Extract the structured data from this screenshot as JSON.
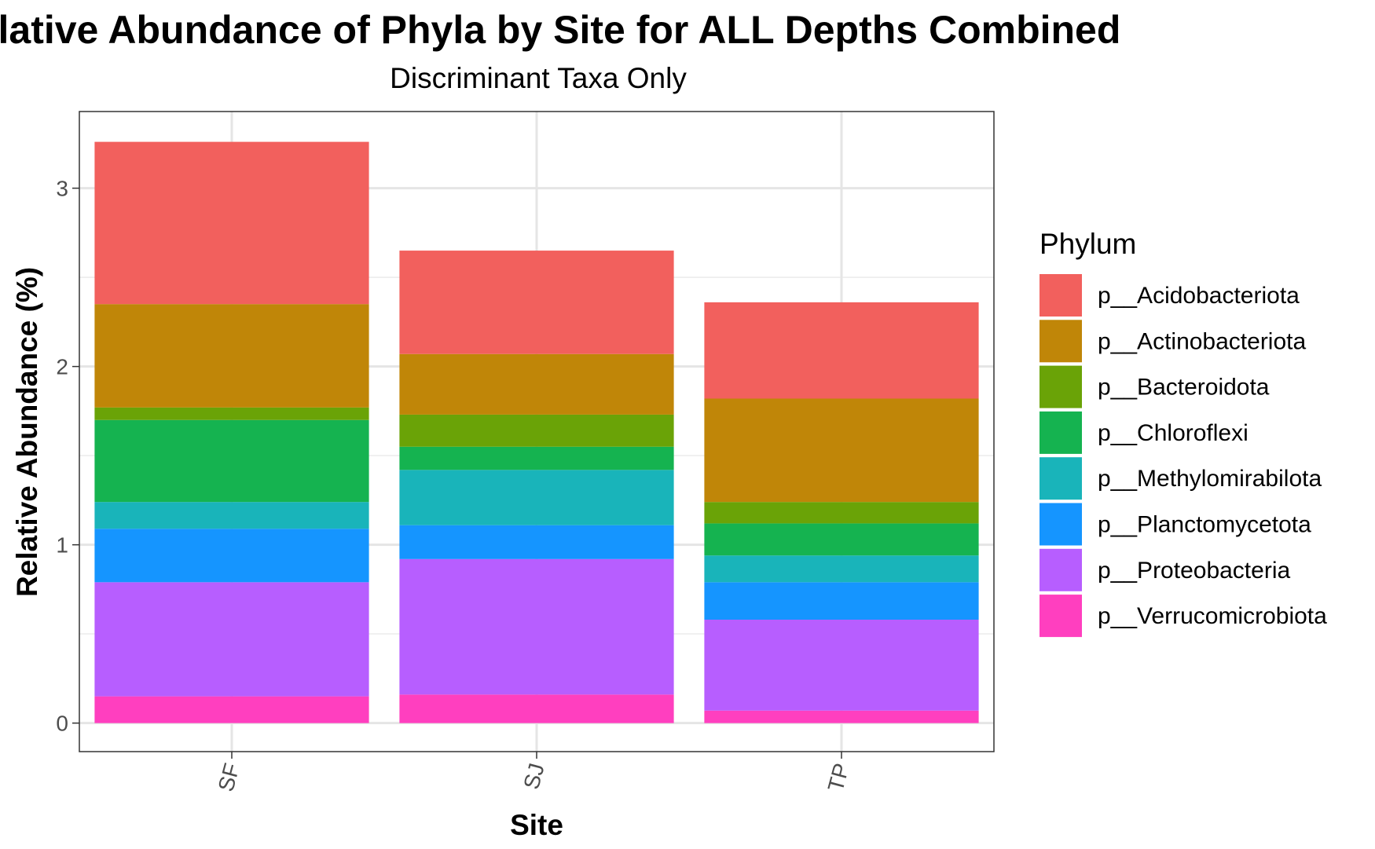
{
  "chart_data": {
    "type": "bar",
    "stacked": true,
    "title": "Relative Abundance of Phyla by Site for ALL Depths Combined",
    "subtitle": "Discriminant Taxa Only",
    "xlabel": "Site",
    "ylabel": "Relative Abundance (%)",
    "categories": [
      "SF",
      "SJ",
      "TP"
    ],
    "ylim": [
      -0.16,
      3.43
    ],
    "yticks": [
      0,
      1,
      2,
      3
    ],
    "grid": true,
    "legend_title": "Phylum",
    "legend_position": "right",
    "series": [
      {
        "name": "p__Verrucomicrobiota",
        "color": "#FF3FBF",
        "values": [
          0.15,
          0.16,
          0.07
        ]
      },
      {
        "name": "p__Proteobacteria",
        "color": "#B75EFF",
        "values": [
          0.64,
          0.76,
          0.51
        ]
      },
      {
        "name": "p__Planctomycetota",
        "color": "#1595FF",
        "values": [
          0.3,
          0.19,
          0.21
        ]
      },
      {
        "name": "p__Methylomirabilota",
        "color": "#19B4BA",
        "values": [
          0.15,
          0.31,
          0.15
        ]
      },
      {
        "name": "p__Chloroflexi",
        "color": "#15B350",
        "values": [
          0.46,
          0.13,
          0.18
        ]
      },
      {
        "name": "p__Bacteroidota",
        "color": "#6AA307",
        "values": [
          0.07,
          0.18,
          0.12
        ]
      },
      {
        "name": "p__Actinobacteriota",
        "color": "#C08608",
        "values": [
          0.58,
          0.34,
          0.58
        ]
      },
      {
        "name": "p__Acidobacteriota",
        "color": "#F2605D",
        "values": [
          0.91,
          0.58,
          0.54
        ]
      }
    ],
    "legend_order": [
      "p__Acidobacteriota",
      "p__Actinobacteriota",
      "p__Bacteroidota",
      "p__Chloroflexi",
      "p__Methylomirabilota",
      "p__Planctomycetota",
      "p__Proteobacteria",
      "p__Verrucomicrobiota"
    ]
  }
}
